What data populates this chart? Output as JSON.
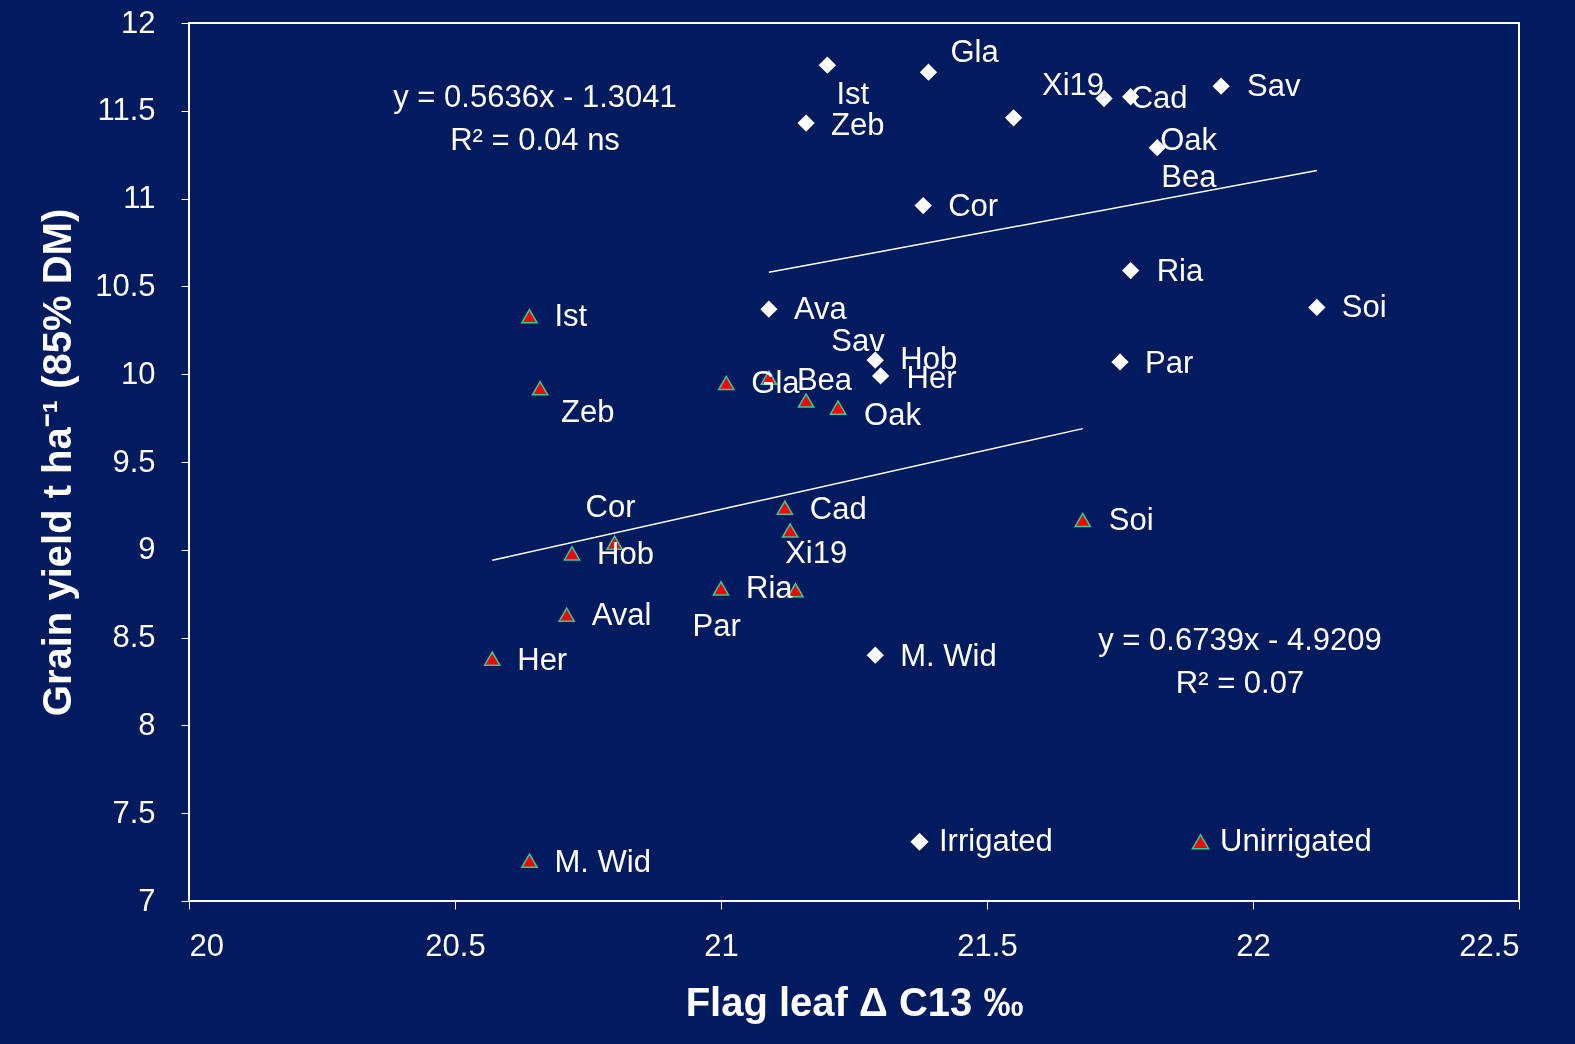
{
  "chart_data": {
    "type": "scatter",
    "xlabel": "Flag leaf  Δ C13 ‰",
    "ylabel": "Grain yield t ha⁻¹  (85% DM)",
    "xlim": [
      20,
      22.5
    ],
    "xticks": [
      20,
      20.5,
      21,
      21.5,
      22,
      22.5
    ],
    "ylim": [
      7,
      12
    ],
    "yticks": [
      7,
      7.5,
      8,
      8.5,
      9,
      9.5,
      10,
      10.5,
      11,
      11.5,
      12
    ],
    "grid": false,
    "legend": "bottom right",
    "series": [
      {
        "name": "Irrigated",
        "marker": "diamond",
        "color": "#ffffff",
        "x": [
          21.2,
          21.39,
          21.16,
          21.55,
          21.72,
          21.77,
          21.94,
          21.82,
          21.38,
          21.77,
          22.12,
          21.09,
          21.29,
          21.3,
          21.75,
          21.29
        ],
        "values": [
          11.76,
          11.72,
          11.43,
          11.46,
          11.57,
          11.58,
          11.64,
          11.29,
          10.96,
          10.59,
          10.38,
          10.37,
          10.08,
          9.99,
          10.07,
          8.4
        ]
      },
      {
        "name": "Unirrigated",
        "marker": "triangle",
        "color": "#ff0000",
        "x": [
          20.64,
          20.66,
          21.01,
          21.09,
          21.16,
          21.22,
          21.12,
          21.13,
          21.68,
          20.8,
          20.72,
          21.0,
          21.14,
          20.71,
          20.57,
          20.64
        ],
        "values": [
          10.33,
          9.92,
          9.95,
          9.98,
          9.85,
          9.81,
          9.24,
          9.11,
          9.17,
          9.04,
          8.98,
          8.78,
          8.77,
          8.63,
          8.38,
          7.23
        ]
      },
      {
        "type": "line",
        "line_style": "solid",
        "color": "#ffffff",
        "x": [
          21.09,
          22.12
        ],
        "values": [
          10.58,
          11.16
        ]
      },
      {
        "type": "line",
        "line_style": "solid",
        "color": "#ffffff",
        "x": [
          20.57,
          21.68
        ],
        "values": [
          8.94,
          9.69
        ]
      }
    ],
    "annotations": [
      "y = 0.5636x - 1.3041",
      "R² = 0.04 ns",
      "y = 0.6739x - 4.9209",
      "R² = 0.07",
      {
        "text": "Ist",
        "x": 21.2,
        "y": 11.76
      },
      {
        "text": "Gla",
        "x": 21.39,
        "y": 11.72
      },
      {
        "text": "Zeb",
        "x": 21.16,
        "y": 11.43
      },
      {
        "text": "Xi19",
        "x": 21.72,
        "y": 11.57
      },
      {
        "text": "Cad",
        "x": 21.77,
        "y": 11.58
      },
      {
        "text": "Sav",
        "x": 21.94,
        "y": 11.64
      },
      {
        "text": "Oak",
        "x": 21.82,
        "y": 11.29
      },
      {
        "text": "Bea",
        "x": 21.82,
        "y": 11.29
      },
      {
        "text": "Cor",
        "x": 21.38,
        "y": 10.96
      },
      {
        "text": "Ria",
        "x": 21.77,
        "y": 10.59
      },
      {
        "text": "Soi",
        "x": 22.12,
        "y": 10.38
      },
      {
        "text": "Ava",
        "x": 21.09,
        "y": 10.37
      },
      {
        "text": "Sav",
        "x": 21.29,
        "y": 10.08
      },
      {
        "text": "Hob",
        "x": 21.29,
        "y": 10.08
      },
      {
        "text": "Her",
        "x": 21.3,
        "y": 9.99
      },
      {
        "text": "Par",
        "x": 21.75,
        "y": 10.07
      },
      {
        "text": "M. Wid",
        "x": 21.29,
        "y": 8.4
      },
      {
        "text": "Ist",
        "x": 20.64,
        "y": 10.33
      },
      {
        "text": "Zeb",
        "x": 20.66,
        "y": 9.92
      },
      {
        "text": "Gla",
        "x": 21.01,
        "y": 9.95
      },
      {
        "text": "Bea",
        "x": 21.09,
        "y": 9.98
      },
      {
        "text": "Oak",
        "x": 21.22,
        "y": 9.81
      },
      {
        "text": "Cor",
        "x": 20.8,
        "y": 9.04
      },
      {
        "text": "Hob",
        "x": 20.72,
        "y": 8.98
      },
      {
        "text": "Cad",
        "x": 21.12,
        "y": 9.24
      },
      {
        "text": "Xi19",
        "x": 21.13,
        "y": 9.11
      },
      {
        "text": "Soi",
        "x": 21.68,
        "y": 9.17
      },
      {
        "text": "Ria",
        "x": 21.0,
        "y": 8.78
      },
      {
        "text": "Par",
        "x": 21.14,
        "y": 8.77
      },
      {
        "text": "Aval",
        "x": 20.71,
        "y": 8.63
      },
      {
        "text": "Her",
        "x": 20.57,
        "y": 8.38
      },
      {
        "text": "M. Wid",
        "x": 20.64,
        "y": 7.23
      }
    ]
  }
}
